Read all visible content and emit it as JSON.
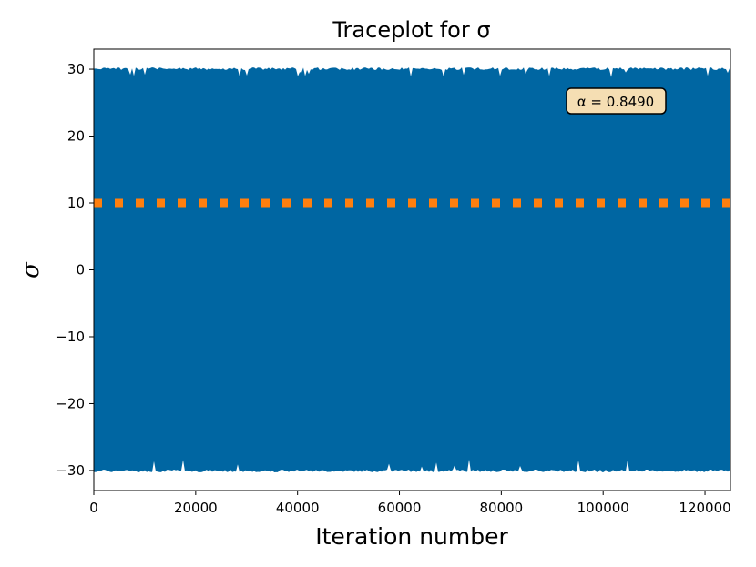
{
  "chart_data": {
    "type": "line",
    "title": "Traceplot for σ",
    "xlabel": "Iteration number",
    "ylabel": "σ",
    "xlim": [
      0,
      125000
    ],
    "ylim": [
      -33,
      33
    ],
    "x_ticks": [
      0,
      20000,
      40000,
      60000,
      80000,
      100000,
      120000
    ],
    "y_ticks": [
      30,
      20,
      10,
      0,
      -10,
      -20,
      -30
    ],
    "y_tick_labels": [
      "30",
      "20",
      "10",
      "0",
      "−10",
      "−20",
      "−30"
    ],
    "grid": false,
    "series": [
      {
        "kind": "trace",
        "color": "#0066a2",
        "n_iterations": 125000,
        "value_range": [
          -30,
          30
        ]
      },
      {
        "kind": "reference-line",
        "value": 10,
        "color": "#ff7f0e",
        "linestyle": "dotted"
      }
    ],
    "annotation": {
      "text": "α = 0.8490",
      "position": "upper-right",
      "background": "#f5deb3"
    }
  }
}
